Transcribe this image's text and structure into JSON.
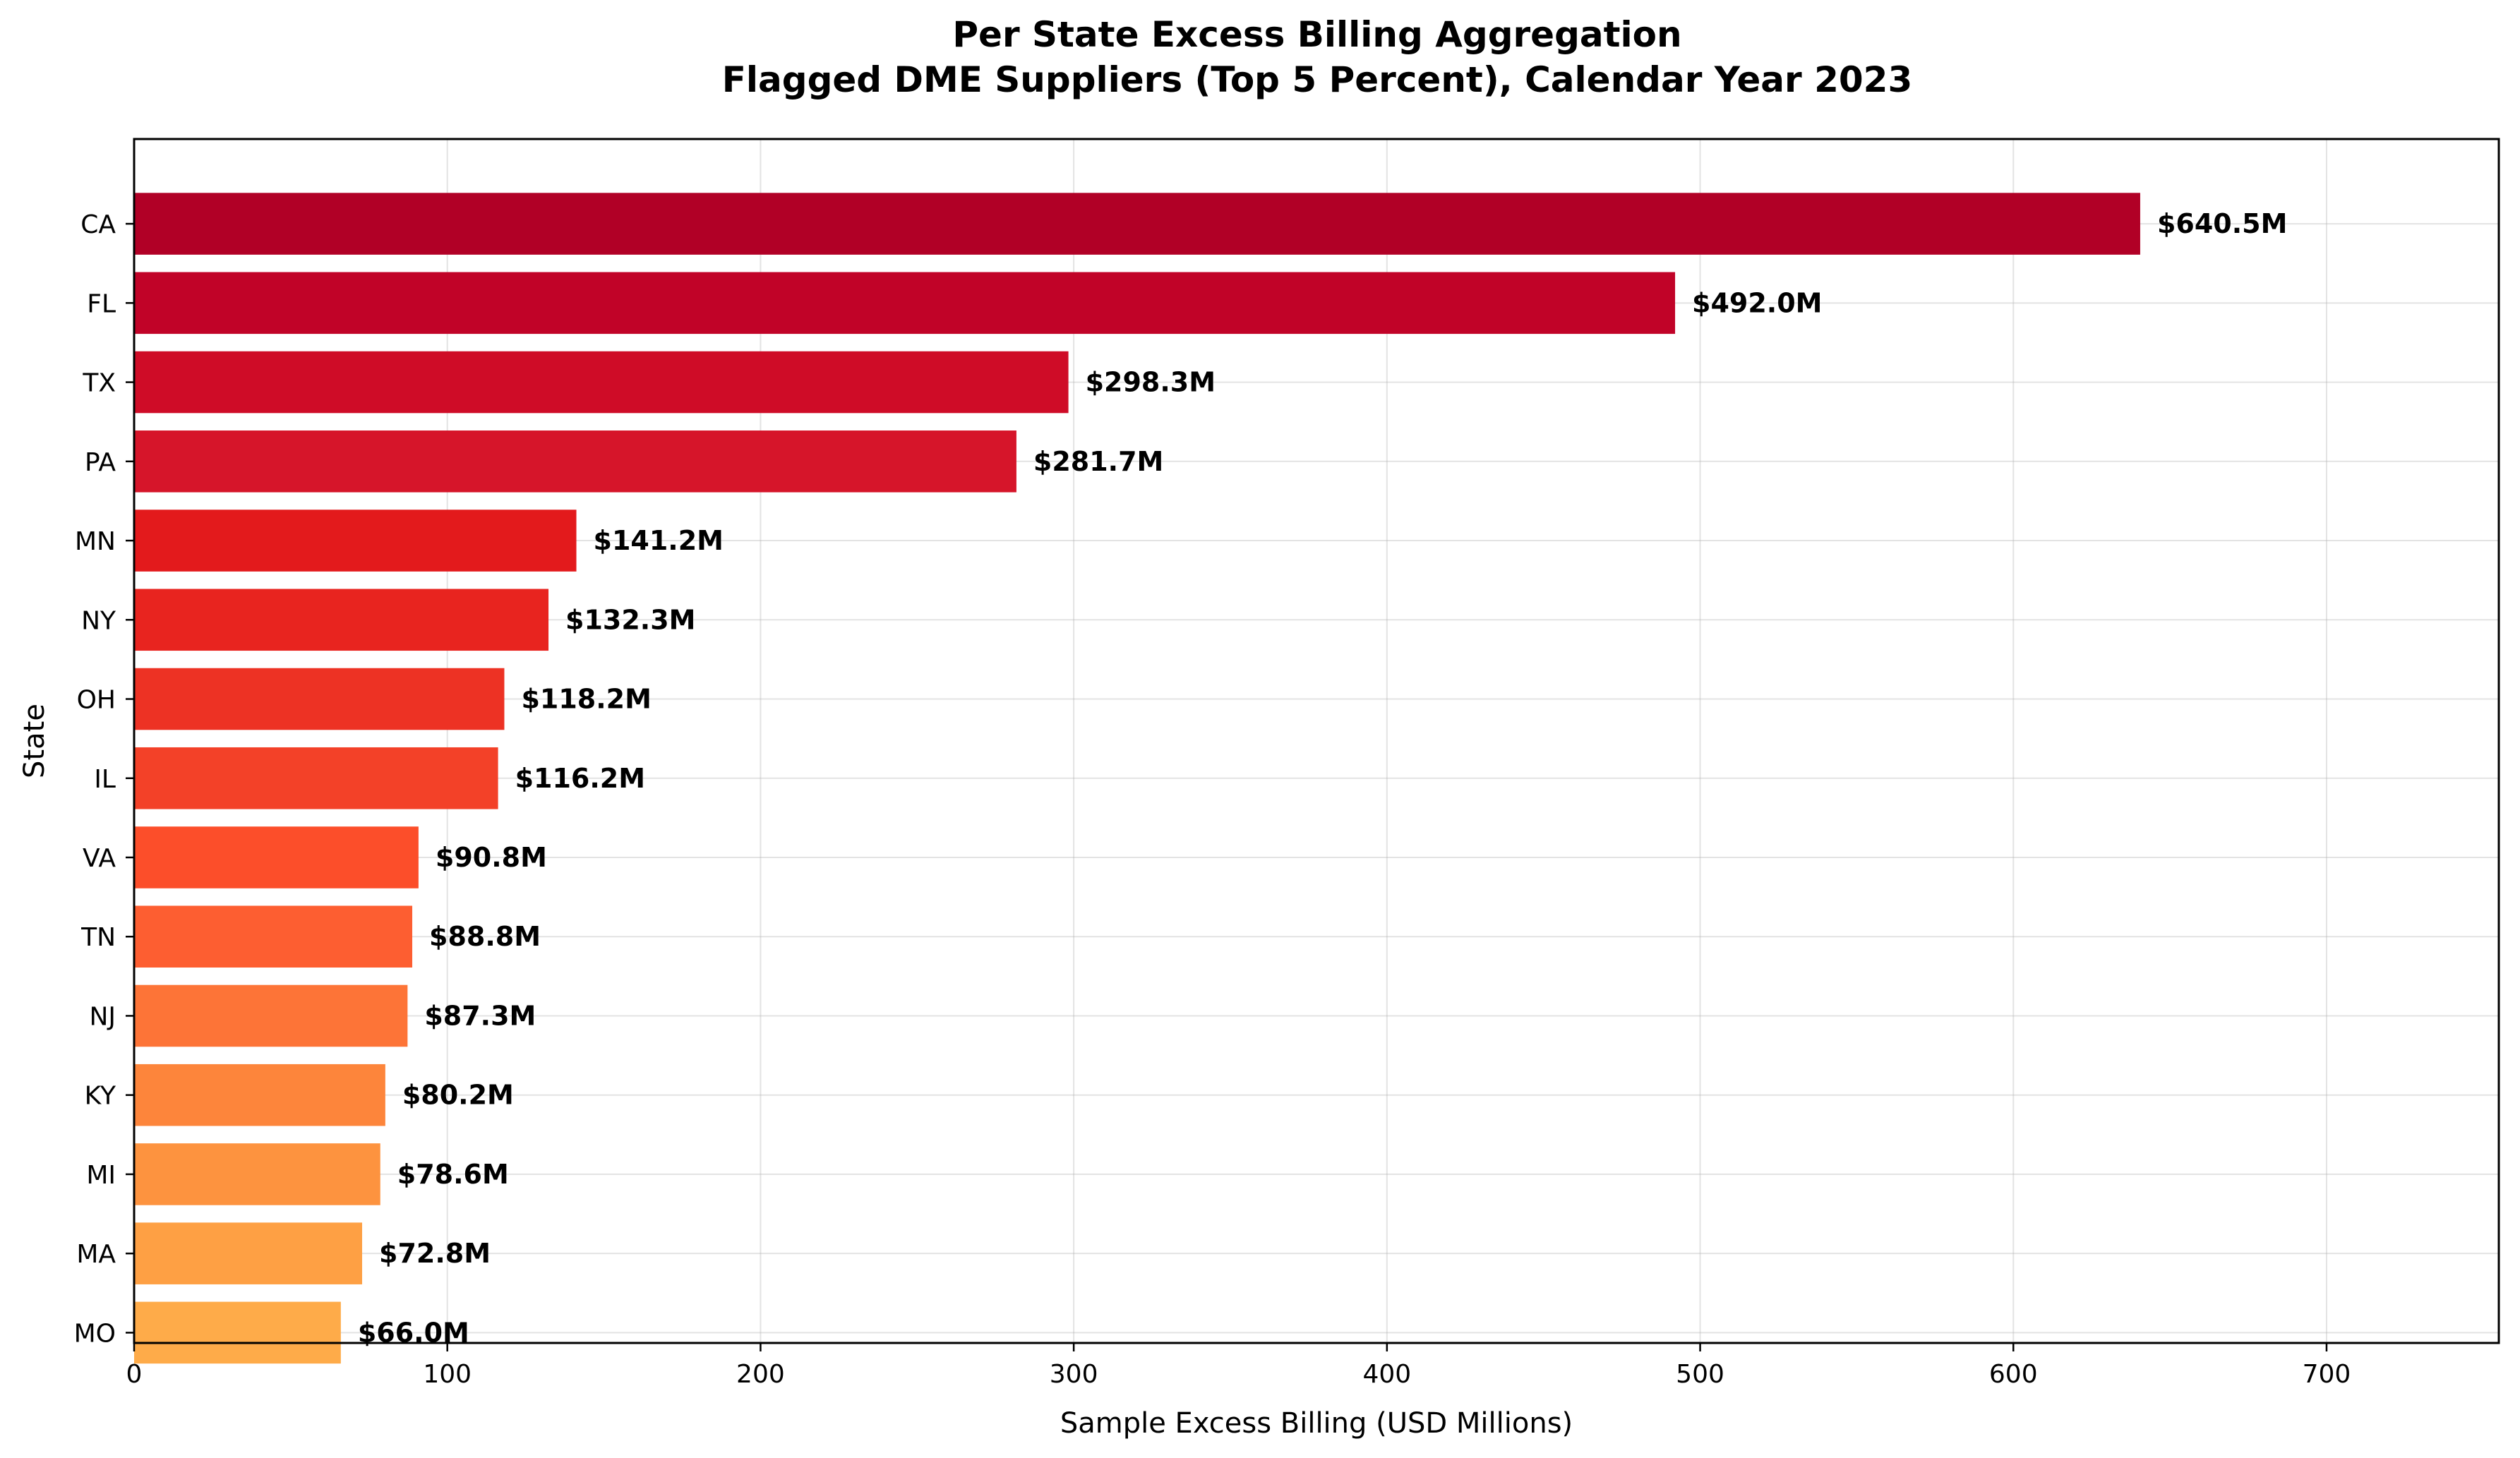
{
  "chart_data": {
    "type": "bar",
    "orientation": "horizontal",
    "title": "Per State Excess Billing Aggregation",
    "subtitle": "Flagged DME Suppliers (Top 5 Percent), Calendar Year 2023",
    "xlabel": "Sample Excess Billing (USD Millions)",
    "ylabel": "State",
    "xlim": [
      0,
      755
    ],
    "xticks": [
      0,
      100,
      200,
      300,
      400,
      500,
      600,
      700
    ],
    "grid": true,
    "categories": [
      "CA",
      "FL",
      "TX",
      "PA",
      "MN",
      "NY",
      "OH",
      "IL",
      "VA",
      "TN",
      "NJ",
      "KY",
      "MI",
      "MA",
      "MO"
    ],
    "values": [
      640.5,
      492.0,
      298.3,
      281.7,
      141.2,
      132.3,
      118.2,
      116.2,
      90.8,
      88.8,
      87.3,
      80.2,
      78.6,
      72.8,
      66.0
    ],
    "value_labels": [
      "$640.5M",
      "$492.0M",
      "$298.3M",
      "$281.7M",
      "$141.2M",
      "$132.3M",
      "$118.2M",
      "$116.2M",
      "$90.8M",
      "$88.8M",
      "$87.3M",
      "$80.2M",
      "$78.6M",
      "$72.8M",
      "$66.0M"
    ],
    "colors": [
      "#b10026",
      "#c10328",
      "#cf0c27",
      "#d6152a",
      "#e31a1c",
      "#e8241f",
      "#ed3224",
      "#f34128",
      "#fc4e2a",
      "#fd5e31",
      "#fd7437",
      "#fd853b",
      "#fd933f",
      "#fea044",
      "#feab49"
    ]
  }
}
